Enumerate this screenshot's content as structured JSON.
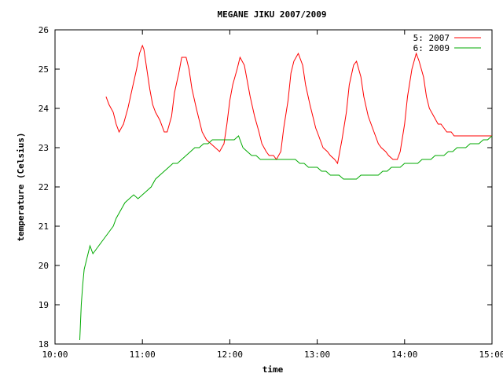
{
  "chart_data": {
    "type": "line",
    "title": "MEGANE JIKU 2007/2009",
    "xlabel": "time",
    "ylabel": "temperature (Celsius)",
    "xlim": [
      "10:00",
      "15:00"
    ],
    "ylim": [
      18,
      26
    ],
    "xticks": [
      "10:00",
      "11:00",
      "12:00",
      "13:00",
      "14:00",
      "15:00"
    ],
    "yticks": [
      18,
      19,
      20,
      21,
      22,
      23,
      24,
      25,
      26
    ],
    "grid": false,
    "legend_position": "top-right",
    "series": [
      {
        "name": "5: 2007",
        "color": "#ff0000",
        "x": [
          "10:35",
          "10:37",
          "10:40",
          "10:42",
          "10:44",
          "10:47",
          "10:50",
          "10:53",
          "10:56",
          "10:58",
          "11:00",
          "11:01",
          "11:03",
          "11:05",
          "11:07",
          "11:09",
          "11:12",
          "11:15",
          "11:17",
          "11:20",
          "11:22",
          "11:25",
          "11:27",
          "11:30",
          "11:32",
          "11:34",
          "11:37",
          "11:39",
          "11:41",
          "11:44",
          "11:47",
          "11:50",
          "11:53",
          "11:56",
          "11:58",
          "12:00",
          "12:02",
          "12:05",
          "12:07",
          "12:10",
          "12:12",
          "12:14",
          "12:17",
          "12:20",
          "12:22",
          "12:25",
          "12:27",
          "12:30",
          "12:32",
          "12:35",
          "12:37",
          "12:40",
          "12:42",
          "12:44",
          "12:47",
          "12:50",
          "12:52",
          "12:55",
          "12:57",
          "12:59",
          "13:01",
          "13:04",
          "13:07",
          "13:09",
          "13:12",
          "13:14",
          "13:17",
          "13:20",
          "13:22",
          "13:25",
          "13:27",
          "13:30",
          "13:32",
          "13:35",
          "13:38",
          "13:40",
          "13:42",
          "13:44",
          "13:47",
          "13:49",
          "13:52",
          "13:55",
          "13:57",
          "14:00",
          "14:02",
          "14:05",
          "14:08",
          "14:10",
          "14:13",
          "14:15",
          "14:17",
          "14:20",
          "14:23",
          "14:25",
          "14:27",
          "14:29",
          "14:32",
          "14:34",
          "14:36",
          "14:38",
          "14:41",
          "14:44",
          "14:47",
          "14:50",
          "14:53",
          "14:56",
          "14:58",
          "15:00"
        ],
        "y": [
          24.3,
          24.1,
          23.9,
          23.6,
          23.4,
          23.6,
          24.0,
          24.5,
          25.0,
          25.4,
          25.6,
          25.5,
          25.0,
          24.5,
          24.1,
          23.9,
          23.7,
          23.4,
          23.4,
          23.8,
          24.4,
          24.9,
          25.3,
          25.3,
          25.0,
          24.5,
          24.0,
          23.7,
          23.4,
          23.2,
          23.1,
          23.0,
          22.9,
          23.1,
          23.6,
          24.2,
          24.6,
          25.0,
          25.3,
          25.1,
          24.7,
          24.3,
          23.8,
          23.4,
          23.1,
          22.9,
          22.8,
          22.8,
          22.7,
          22.9,
          23.5,
          24.2,
          24.9,
          25.2,
          25.4,
          25.1,
          24.6,
          24.1,
          23.8,
          23.5,
          23.3,
          23.0,
          22.9,
          22.8,
          22.7,
          22.6,
          23.2,
          23.9,
          24.6,
          25.1,
          25.2,
          24.8,
          24.3,
          23.8,
          23.5,
          23.3,
          23.1,
          23.0,
          22.9,
          22.8,
          22.7,
          22.7,
          22.9,
          23.6,
          24.3,
          25.0,
          25.4,
          25.2,
          24.8,
          24.3,
          24.0,
          23.8,
          23.6,
          23.6,
          23.5,
          23.4,
          23.4,
          23.3,
          23.3,
          23.3,
          23.3,
          23.3,
          23.3,
          23.3,
          23.3,
          23.3,
          23.3,
          23.3
        ],
        "note": ""
      },
      {
        "name": "6: 2009",
        "color": "#00aa00",
        "x": [
          "10:17",
          "10:18",
          "10:19",
          "10:20",
          "10:22",
          "10:24",
          "10:26",
          "10:28",
          "10:30",
          "10:32",
          "10:34",
          "10:36",
          "10:38",
          "10:40",
          "10:42",
          "10:45",
          "10:48",
          "10:51",
          "10:54",
          "10:57",
          "11:00",
          "11:03",
          "11:06",
          "11:09",
          "11:12",
          "11:15",
          "11:18",
          "11:21",
          "11:24",
          "11:27",
          "11:30",
          "11:33",
          "11:36",
          "11:39",
          "11:42",
          "11:45",
          "11:48",
          "11:51",
          "11:54",
          "11:57",
          "12:00",
          "12:03",
          "12:06",
          "12:09",
          "12:12",
          "12:15",
          "12:18",
          "12:21",
          "12:24",
          "12:27",
          "12:30",
          "12:33",
          "12:36",
          "12:39",
          "12:42",
          "12:45",
          "12:48",
          "12:51",
          "12:54",
          "12:57",
          "13:00",
          "13:03",
          "13:06",
          "13:09",
          "13:12",
          "13:15",
          "13:18",
          "13:21",
          "13:24",
          "13:27",
          "13:30",
          "13:33",
          "13:36",
          "13:39",
          "13:42",
          "13:45",
          "13:48",
          "13:51",
          "13:54",
          "13:57",
          "14:00",
          "14:03",
          "14:06",
          "14:09",
          "14:12",
          "14:15",
          "14:18",
          "14:21",
          "14:24",
          "14:27",
          "14:30",
          "14:33",
          "14:36",
          "14:39",
          "14:42",
          "14:45",
          "14:48",
          "14:51",
          "14:54",
          "14:57",
          "15:00"
        ],
        "y": [
          18.1,
          19.0,
          19.5,
          19.9,
          20.2,
          20.5,
          20.3,
          20.4,
          20.5,
          20.6,
          20.7,
          20.8,
          20.9,
          21.0,
          21.2,
          21.4,
          21.6,
          21.7,
          21.8,
          21.7,
          21.8,
          21.9,
          22.0,
          22.2,
          22.3,
          22.4,
          22.5,
          22.6,
          22.6,
          22.7,
          22.8,
          22.9,
          23.0,
          23.0,
          23.1,
          23.1,
          23.2,
          23.2,
          23.2,
          23.2,
          23.2,
          23.2,
          23.3,
          23.0,
          22.9,
          22.8,
          22.8,
          22.7,
          22.7,
          22.7,
          22.7,
          22.7,
          22.7,
          22.7,
          22.7,
          22.7,
          22.6,
          22.6,
          22.5,
          22.5,
          22.5,
          22.4,
          22.4,
          22.3,
          22.3,
          22.3,
          22.2,
          22.2,
          22.2,
          22.2,
          22.3,
          22.3,
          22.3,
          22.3,
          22.3,
          22.4,
          22.4,
          22.5,
          22.5,
          22.5,
          22.6,
          22.6,
          22.6,
          22.6,
          22.7,
          22.7,
          22.7,
          22.8,
          22.8,
          22.8,
          22.9,
          22.9,
          23.0,
          23.0,
          23.0,
          23.1,
          23.1,
          23.1,
          23.2,
          23.2,
          23.3
        ]
      }
    ]
  }
}
